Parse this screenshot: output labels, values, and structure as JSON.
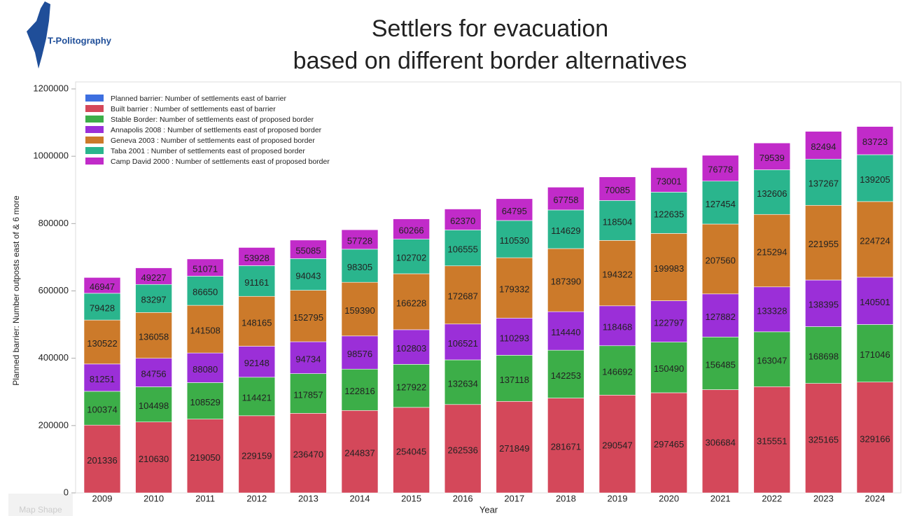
{
  "logo": "T-Politography",
  "overlay_text": "Map Shape",
  "chart_data": {
    "type": "stacked-bar",
    "title": "Settlers for evacuation",
    "subtitle": "based on different border alternatives",
    "y_label": "Planned barrier: Number outposts east of & 6 more",
    "x_label": "Year",
    "categories": [
      "2009",
      "2010",
      "2011",
      "2012",
      "2013",
      "2014",
      "2015",
      "2016",
      "2017",
      "2018",
      "2019",
      "2020",
      "2021",
      "2022",
      "2023",
      "2024"
    ],
    "ylim": [
      0,
      1200000
    ],
    "yticks": [
      0,
      200000,
      400000,
      600000,
      800000,
      1000000,
      1200000
    ],
    "legend": "top-left",
    "series": [
      {
        "name": "Planned barrier: Number of settlements east of barrier",
        "color": "#3d6fe0",
        "values": [
          null,
          null,
          null,
          null,
          null,
          null,
          null,
          null,
          null,
          null,
          null,
          null,
          null,
          null,
          null,
          null
        ]
      },
      {
        "name": "Built barrier : Number of settlements east of barrier",
        "color": "#d4485a",
        "values": [
          201336,
          210630,
          219050,
          229159,
          236470,
          244837,
          254045,
          262536,
          271849,
          281671,
          290547,
          297465,
          306684,
          315551,
          325165,
          329166
        ]
      },
      {
        "name": "Stable Border: Number of settlements east of proposed border",
        "color": "#3cae48",
        "values": [
          100374,
          104498,
          108529,
          114421,
          117857,
          122816,
          127922,
          132634,
          137118,
          142253,
          146692,
          150490,
          156485,
          163047,
          168698,
          171046
        ]
      },
      {
        "name": "Annapolis 2008 : Number of settlements east of proposed border",
        "color": "#9b2fd8",
        "values": [
          81251,
          84756,
          88080,
          92148,
          94734,
          98576,
          102803,
          106521,
          110293,
          114440,
          118468,
          122797,
          127882,
          133328,
          138395,
          140501
        ]
      },
      {
        "name": "Geneva 2003 : Number of settlements east of proposed border",
        "color": "#cc7a2a",
        "values": [
          130522,
          136058,
          141508,
          148165,
          152795,
          159390,
          166228,
          172687,
          179332,
          187390,
          194322,
          199983,
          207560,
          215294,
          221955,
          224724
        ]
      },
      {
        "name": "Taba 2001 : Number of settlements east of proposed border",
        "color": "#2ab58d",
        "values": [
          79428,
          83297,
          86650,
          91161,
          94043,
          98305,
          102702,
          106555,
          110530,
          114629,
          118504,
          122635,
          127454,
          132606,
          137267,
          139205
        ]
      },
      {
        "name": "Camp David 2000 : Number of settlements east of proposed border",
        "color": "#c12bc9",
        "values": [
          46947,
          49227,
          51071,
          53928,
          55085,
          57728,
          60266,
          62370,
          64795,
          67758,
          70085,
          73001,
          76778,
          79539,
          82494,
          83723
        ]
      }
    ]
  }
}
